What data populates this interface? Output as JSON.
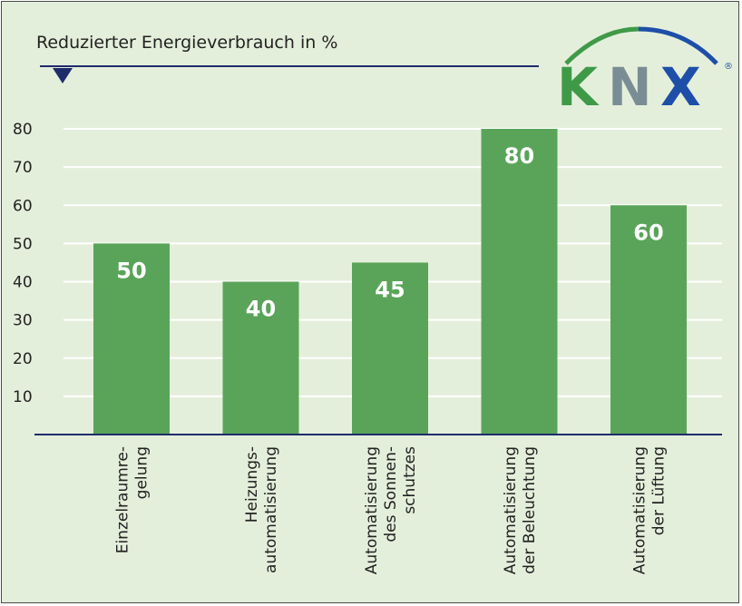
{
  "colors": {
    "background": "#e4efdb",
    "bar": "#5aa459",
    "grid": "#ffffff",
    "axis": "#1f2c6b",
    "logo_green": "#3f9a48",
    "logo_gray": "#7a8d95",
    "logo_blue": "#1e4fa8"
  },
  "logo": {
    "letters": [
      "K",
      "N",
      "X"
    ],
    "registered": "®"
  },
  "chart_data": {
    "type": "bar",
    "title": "Reduzierter Energieverbrauch in %",
    "categories": [
      [
        "Einzelraumre-",
        "gelung"
      ],
      [
        "Heizungs-",
        "automatisierung"
      ],
      [
        "Automatisierung",
        "des Sonnen-",
        "schutzes"
      ],
      [
        "Automatisierung",
        "der Beleuchtung"
      ],
      [
        "Automatisierung",
        "der Lüftung"
      ]
    ],
    "values": [
      50,
      40,
      45,
      80,
      60
    ],
    "data_labels": [
      "50",
      "40",
      "45",
      "80",
      "60"
    ],
    "y_ticks": [
      "10",
      "20",
      "30",
      "40",
      "50",
      "60",
      "70",
      "80"
    ],
    "ylim": [
      0,
      80
    ],
    "grid": true,
    "legend": "none"
  }
}
